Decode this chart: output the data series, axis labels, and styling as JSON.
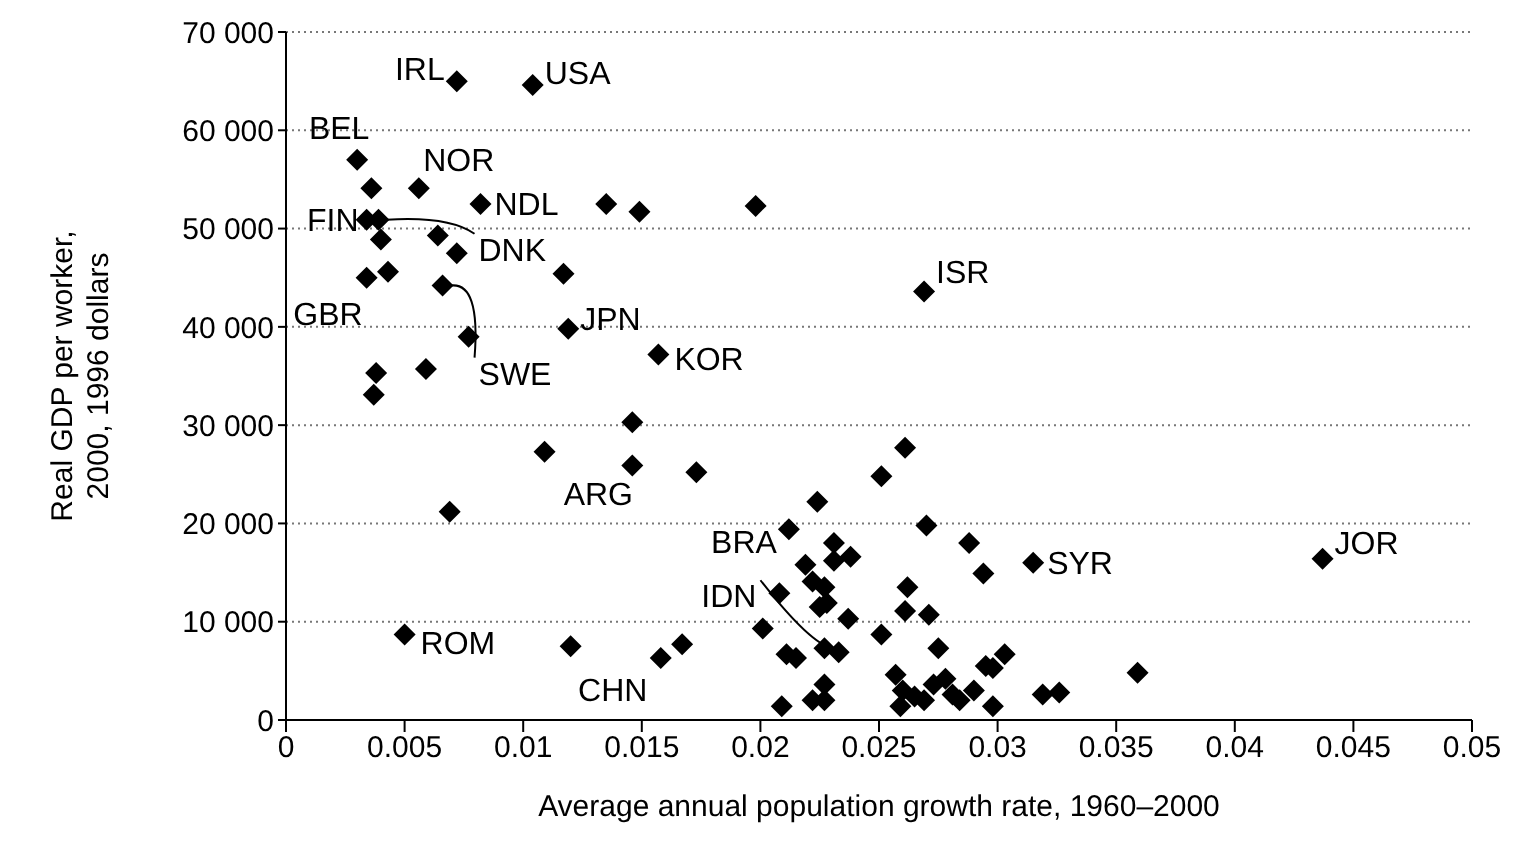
{
  "chart_data": {
    "type": "scatter",
    "xlabel": "Average annual population growth rate, 1960–2000",
    "ylabel": "Real GDP per worker,\n2000, 1996 dollars",
    "color": "#000000",
    "marker": "diamond",
    "grid": "y",
    "legend": false,
    "xlim": [
      0,
      0.05
    ],
    "xticks": [
      0,
      0.005,
      0.01,
      0.015,
      0.02,
      0.025,
      0.03,
      0.035,
      0.04,
      0.045,
      0.05
    ],
    "ylim": [
      0,
      70000
    ],
    "yticks": [
      {
        "value": 0,
        "label": "0"
      },
      {
        "value": 10000,
        "label": "10 000"
      },
      {
        "value": 20000,
        "label": "20 000"
      },
      {
        "value": 30000,
        "label": "30 000"
      },
      {
        "value": 40000,
        "label": "40 000"
      },
      {
        "value": 50000,
        "label": "50 000"
      },
      {
        "value": 60000,
        "label": "60 000"
      },
      {
        "value": 70000,
        "label": "70 000"
      }
    ],
    "x": [
      0.0072,
      0.0104,
      0.003,
      0.0036,
      0.0056,
      0.0082,
      0.0135,
      0.0149,
      0.0034,
      0.0039,
      0.004,
      0.0064,
      0.0072,
      0.0117,
      0.0034,
      0.0043,
      0.0066,
      0.0077,
      0.0119,
      0.0157,
      0.0038,
      0.0059,
      0.0037,
      0.0146,
      0.0109,
      0.0146,
      0.0173,
      0.0069,
      0.005,
      0.012,
      0.0158,
      0.0167,
      0.0261,
      0.0251,
      0.0224,
      0.0212,
      0.027,
      0.0231,
      0.0238,
      0.0288,
      0.0294,
      0.0315,
      0.0219,
      0.0231,
      0.0222,
      0.0227,
      0.0208,
      0.0262,
      0.0225,
      0.0228,
      0.0261,
      0.0271,
      0.0237,
      0.0201,
      0.0251,
      0.0275,
      0.0211,
      0.0215,
      0.0227,
      0.0233,
      0.0298,
      0.0303,
      0.0295,
      0.0227,
      0.0257,
      0.026,
      0.0265,
      0.0269,
      0.0273,
      0.0278,
      0.0281,
      0.0284,
      0.029,
      0.0259,
      0.0298,
      0.0209,
      0.0222,
      0.0227,
      0.0319,
      0.0326,
      0.0359,
      0.0437,
      0.0198,
      0.0269
    ],
    "values": [
      65000,
      64600,
      57000,
      54100,
      54100,
      52500,
      52500,
      51700,
      50900,
      50900,
      48900,
      49300,
      47500,
      45400,
      45000,
      45600,
      44200,
      39000,
      39800,
      37200,
      35300,
      35700,
      33100,
      30300,
      27300,
      25900,
      25200,
      21200,
      8700,
      7500,
      6300,
      7700,
      27700,
      24800,
      22200,
      19400,
      19800,
      18000,
      16600,
      18000,
      14900,
      16000,
      15800,
      16200,
      14100,
      13500,
      12900,
      13500,
      11500,
      11900,
      11100,
      10700,
      10300,
      9300,
      8700,
      7300,
      6700,
      6300,
      7300,
      6900,
      5300,
      6700,
      5500,
      3600,
      4600,
      3000,
      2400,
      2000,
      3600,
      4200,
      2600,
      2000,
      3000,
      1400,
      1400,
      1400,
      2000,
      2000,
      2600,
      2800,
      4800,
      16400,
      52300,
      43600
    ],
    "annotations": [
      {
        "text": "IRL",
        "x": 0.0072,
        "y": 65000
      },
      {
        "text": "USA",
        "x": 0.0104,
        "y": 64600
      },
      {
        "text": "BEL",
        "x": 0.003,
        "y": 57000
      },
      {
        "text": "NOR",
        "x": 0.0056,
        "y": 54100
      },
      {
        "text": "NDL",
        "x": 0.0082,
        "y": 52500
      },
      {
        "text": "FIN",
        "x": 0.0034,
        "y": 50900
      },
      {
        "text": "DNK",
        "x": 0.0039,
        "y": 50900
      },
      {
        "text": "GBR",
        "x": 0.0034,
        "y": 45000
      },
      {
        "text": "SWE",
        "x": 0.0066,
        "y": 44200
      },
      {
        "text": "JPN",
        "x": 0.0119,
        "y": 39800
      },
      {
        "text": "KOR",
        "x": 0.0157,
        "y": 37200
      },
      {
        "text": "ISR",
        "x": 0.0269,
        "y": 43600
      },
      {
        "text": "ARG",
        "x": 0.0146,
        "y": 25900
      },
      {
        "text": "BRA",
        "x": 0.0212,
        "y": 19400
      },
      {
        "text": "IDN",
        "x": 0.0227,
        "y": 7300
      },
      {
        "text": "SYR",
        "x": 0.0315,
        "y": 16000
      },
      {
        "text": "JOR",
        "x": 0.0437,
        "y": 16400
      },
      {
        "text": "ROM",
        "x": 0.005,
        "y": 8700
      },
      {
        "text": "CHN",
        "x": 0.0158,
        "y": 6300
      }
    ]
  }
}
